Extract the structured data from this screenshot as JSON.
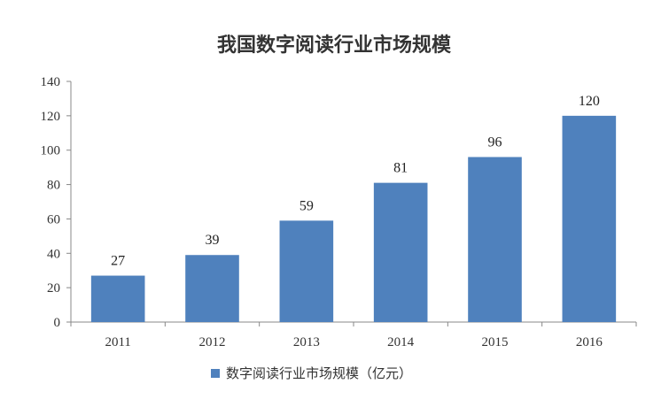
{
  "chart_data": {
    "type": "bar",
    "title": "我国数字阅读行业市场规模",
    "categories": [
      "2011",
      "2012",
      "2013",
      "2014",
      "2015",
      "2016"
    ],
    "series": [
      {
        "name": "数字阅读行业市场规模（亿元）",
        "values": [
          27,
          39,
          59,
          81,
          96,
          120
        ],
        "color": "#4f81bd"
      }
    ],
    "ylim": [
      0,
      140
    ],
    "yticks": [
      0,
      20,
      40,
      60,
      80,
      100,
      120,
      140
    ],
    "data_labels": true,
    "grid": false,
    "legend_position": "bottom"
  }
}
